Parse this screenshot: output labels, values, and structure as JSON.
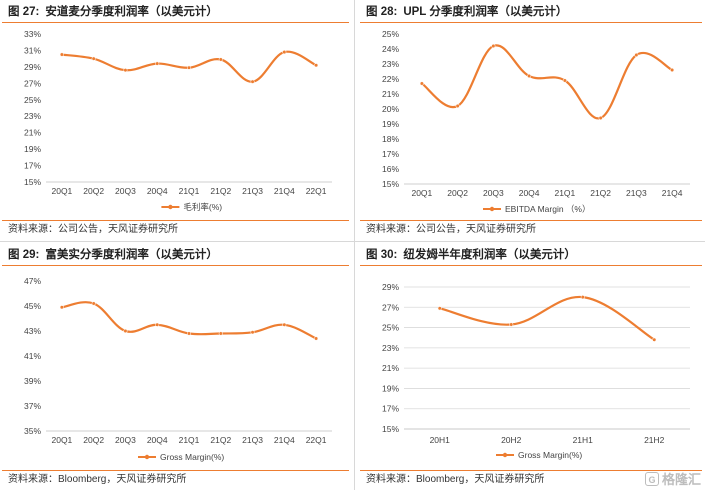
{
  "panels": [
    {
      "num": "图 27:",
      "title": "安道麦分季度利润率（以美元计）",
      "source": "资料来源：公司公告，天风证券研究所"
    },
    {
      "num": "图 28:",
      "title": "UPL 分季度利润率（以美元计）",
      "source": "资料来源：公司公告，天风证券研究所"
    },
    {
      "num": "图 29:",
      "title": "富美实分季度利润率（以美元计）",
      "source": "资料来源：Bloomberg，天风证券研究所"
    },
    {
      "num": "图 30:",
      "title": "纽发姆半年度利润率（以美元计）",
      "source": "资料来源：Bloomberg，天风证券研究所"
    }
  ],
  "watermark": {
    "logo": "G",
    "text": "格隆汇"
  },
  "chart_data": [
    {
      "type": "line",
      "categories": [
        "20Q1",
        "20Q2",
        "20Q3",
        "20Q4",
        "21Q1",
        "21Q2",
        "21Q3",
        "21Q4",
        "22Q1"
      ],
      "series": [
        {
          "name": "毛利率(%)",
          "values": [
            30.5,
            30.0,
            28.6,
            29.4,
            28.9,
            29.9,
            27.2,
            30.8,
            29.2
          ]
        }
      ],
      "ylim": [
        15,
        33
      ],
      "yticks": [
        15,
        17,
        19,
        21,
        23,
        25,
        27,
        29,
        31,
        33
      ],
      "tick_suffix": "%",
      "smooth": true,
      "color": "#ED7D31",
      "grid": false
    },
    {
      "type": "line",
      "categories": [
        "20Q1",
        "20Q2",
        "20Q3",
        "20Q4",
        "21Q1",
        "21Q2",
        "21Q3",
        "21Q4"
      ],
      "series": [
        {
          "name": "EBITDA Margin    （%）",
          "values": [
            21.7,
            20.2,
            24.2,
            22.2,
            21.9,
            19.4,
            23.6,
            22.6
          ]
        }
      ],
      "ylim": [
        15,
        25
      ],
      "yticks": [
        15,
        16,
        17,
        18,
        19,
        20,
        21,
        22,
        23,
        24,
        25
      ],
      "tick_suffix": "%",
      "smooth": true,
      "color": "#ED7D31",
      "grid": false
    },
    {
      "type": "line",
      "categories": [
        "20Q1",
        "20Q2",
        "20Q3",
        "20Q4",
        "21Q1",
        "21Q2",
        "21Q3",
        "21Q4",
        "22Q1"
      ],
      "series": [
        {
          "name": "Gross Margin(%)",
          "values": [
            44.9,
            45.2,
            43.0,
            43.5,
            42.8,
            42.8,
            42.9,
            43.5,
            42.4
          ]
        }
      ],
      "ylim": [
        35,
        47
      ],
      "yticks": [
        35,
        37,
        39,
        41,
        43,
        45,
        47
      ],
      "tick_suffix": "%",
      "smooth": true,
      "color": "#ED7D31",
      "grid": false
    },
    {
      "type": "line",
      "categories": [
        "20H1",
        "20H2",
        "21H1",
        "21H2"
      ],
      "series": [
        {
          "name": "Gross Margin(%)",
          "values": [
            26.9,
            25.3,
            28.0,
            23.8
          ]
        }
      ],
      "ylim": [
        15,
        29
      ],
      "yticks": [
        15,
        17,
        19,
        21,
        23,
        25,
        27,
        29
      ],
      "tick_suffix": "%",
      "smooth": true,
      "color": "#ED7D31",
      "grid": true
    }
  ]
}
